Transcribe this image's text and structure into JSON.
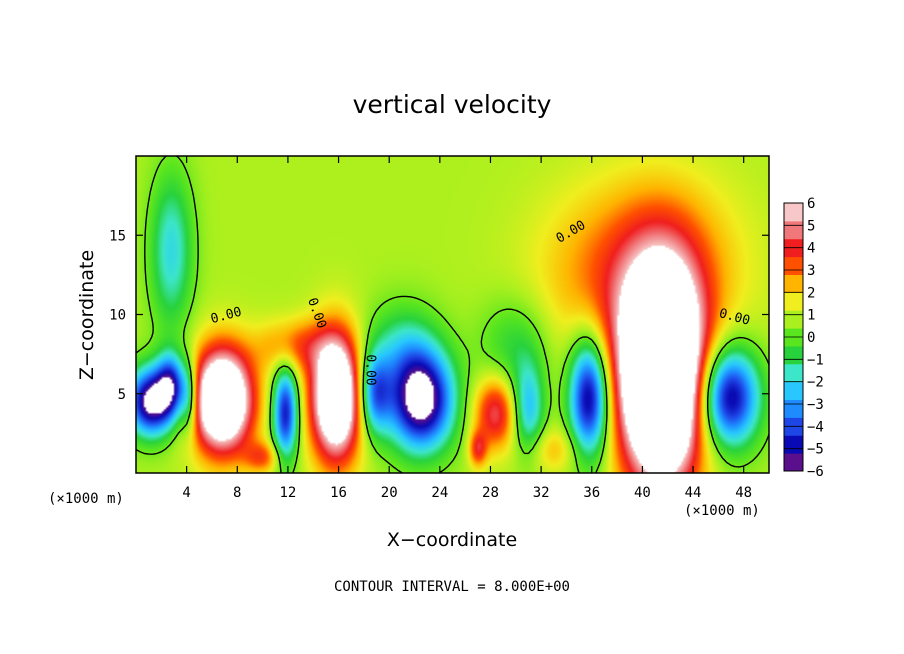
{
  "chart_data": {
    "type": "heatmap",
    "title": "vertical velocity",
    "xlabel": "X−coordinate",
    "ylabel": "Z−coordinate",
    "x_scale_note_left": "(×1000 m)",
    "x_scale_note_right": "(×1000 m)",
    "xlim": [
      0,
      50
    ],
    "ylim": [
      0,
      20
    ],
    "x_ticks": [
      4,
      8,
      12,
      16,
      20,
      24,
      28,
      32,
      36,
      40,
      44,
      48
    ],
    "y_ticks": [
      5,
      10,
      15
    ],
    "colorbar": {
      "ticks": [
        6,
        5,
        4,
        3,
        2,
        1,
        0,
        -1,
        -2,
        -3,
        -4,
        -5,
        -6
      ],
      "tick_labels": [
        "6",
        "5",
        "4",
        "3",
        "2",
        "1",
        "0",
        "−1",
        "−2",
        "−3",
        "−4",
        "−5",
        "−6"
      ],
      "colors": [
        "#5a0f8c",
        "#0a0ab4",
        "#1e46e6",
        "#1e8cff",
        "#28c8ff",
        "#3ce6c8",
        "#28d23c",
        "#5ae61e",
        "#aaf01e",
        "#f0ee1e",
        "#ffb400",
        "#ff5000",
        "#f01e1e",
        "#f0787a",
        "#f8c8c8"
      ],
      "range": [
        -6,
        6
      ]
    },
    "contour_label": "0.00",
    "contour_interval_text": "CONTOUR INTERVAL = 8.000E+00",
    "features": [
      {
        "x": 1.2,
        "z": 4.5,
        "w": -7.5,
        "sx": 1.3,
        "sz": 1.5
      },
      {
        "x": 2.8,
        "z": 5.6,
        "w": -5.0,
        "sx": 0.8,
        "sz": 1.4
      },
      {
        "x": 6.8,
        "z": 4.6,
        "w": 9.5,
        "sx": 1.7,
        "sz": 2.3
      },
      {
        "x": 4.2,
        "z": 4.8,
        "w": -3.5,
        "sx": 0.5,
        "sz": 1.6
      },
      {
        "x": 11.8,
        "z": 3.8,
        "w": -6.0,
        "sx": 0.7,
        "sz": 2.1
      },
      {
        "x": 15.8,
        "z": 4.8,
        "w": 9.0,
        "sx": 1.4,
        "sz": 2.8
      },
      {
        "x": 18.8,
        "z": 5.0,
        "w": -4.5,
        "sx": 0.9,
        "sz": 1.8
      },
      {
        "x": 22.5,
        "z": 4.6,
        "w": -8.0,
        "sx": 1.8,
        "sz": 2.2
      },
      {
        "x": 28.4,
        "z": 3.8,
        "w": 4.0,
        "sx": 1.2,
        "sz": 1.6
      },
      {
        "x": 27.0,
        "z": 1.5,
        "w": 3.0,
        "sx": 0.5,
        "sz": 0.8
      },
      {
        "x": 31.0,
        "z": 4.0,
        "w": -3.5,
        "sx": 0.9,
        "sz": 2.0
      },
      {
        "x": 35.8,
        "z": 4.8,
        "w": -7.0,
        "sx": 1.1,
        "sz": 2.6
      },
      {
        "x": 41.5,
        "z": 6.0,
        "w": 13.0,
        "sx": 2.3,
        "sz": 4.6
      },
      {
        "x": 46.8,
        "z": 4.8,
        "w": -7.0,
        "sx": 1.7,
        "sz": 2.2
      },
      {
        "x": 12.5,
        "z": 8.0,
        "w": 2.5,
        "sx": 2.0,
        "sz": 1.2
      },
      {
        "x": 41.5,
        "z": 13.0,
        "w": 2.3,
        "sx": 4.5,
        "sz": 4.0
      },
      {
        "x": 2.8,
        "z": 14.0,
        "w": -3.0,
        "sx": 1.2,
        "sz": 3.5
      },
      {
        "x": 21.0,
        "z": 8.0,
        "w": -2.0,
        "sx": 2.0,
        "sz": 2.0
      },
      {
        "x": 30.0,
        "z": 8.0,
        "w": -1.8,
        "sx": 2.0,
        "sz": 2.2
      },
      {
        "x": 36.0,
        "z": 12.0,
        "w": 1.2,
        "sx": 4.0,
        "sz": 4.0
      },
      {
        "x": 10.0,
        "z": 1.0,
        "w": 2.5,
        "sx": 1.0,
        "sz": 0.7
      },
      {
        "x": 33.0,
        "z": 1.5,
        "w": 1.5,
        "sx": 1.5,
        "sz": 1.0
      }
    ]
  }
}
